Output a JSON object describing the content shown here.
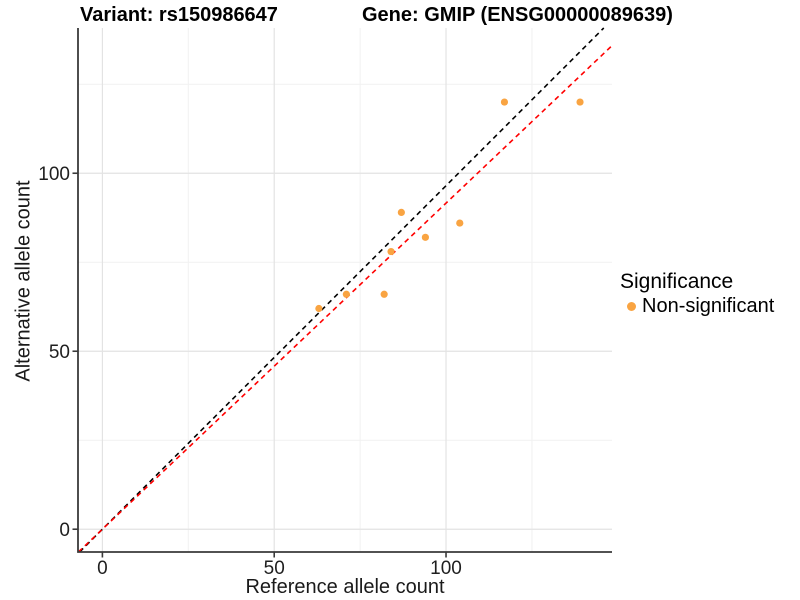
{
  "chart_data": {
    "type": "scatter",
    "title_left": "Variant: rs150986647",
    "title_right": "Gene: GMIP (ENSG00000089639)",
    "xlabel": "Reference allele count",
    "ylabel": "Alternative allele count",
    "xlim": [
      -7.1,
      148.3
    ],
    "ylim": [
      -6.4,
      140.8
    ],
    "x_ticks": [
      0,
      50,
      100
    ],
    "x_minor_ticks": [
      25,
      75,
      125
    ],
    "y_ticks": [
      0,
      50,
      100
    ],
    "y_minor_ticks": [
      25,
      75,
      125
    ],
    "grid": "on",
    "legend": {
      "title": "Significance",
      "position": "right",
      "items": [
        {
          "label": "Non-significant",
          "color": "#F9A442"
        }
      ]
    },
    "series": [
      {
        "name": "Non-significant",
        "color": "#F9A442",
        "points": [
          [
            63,
            62
          ],
          [
            71,
            66
          ],
          [
            82,
            66
          ],
          [
            84,
            78
          ],
          [
            87,
            89
          ],
          [
            94,
            82
          ],
          [
            104,
            86
          ],
          [
            117,
            120
          ],
          [
            139,
            120
          ]
        ]
      }
    ],
    "reference_lines": [
      {
        "name": "identity-line",
        "style": "dashed",
        "color": "#000000",
        "slope": 0.965,
        "intercept": 0
      },
      {
        "name": "fit-line",
        "style": "dashed",
        "color": "#FF0000",
        "slope": 0.916,
        "intercept": 0
      }
    ],
    "colors": {
      "grid_major": "#E3E3E3",
      "grid_minor": "#F1F1F1",
      "axis": "#3A3A3A",
      "tick_text": "#1F1F1F",
      "background": "#FFFFFF"
    }
  }
}
